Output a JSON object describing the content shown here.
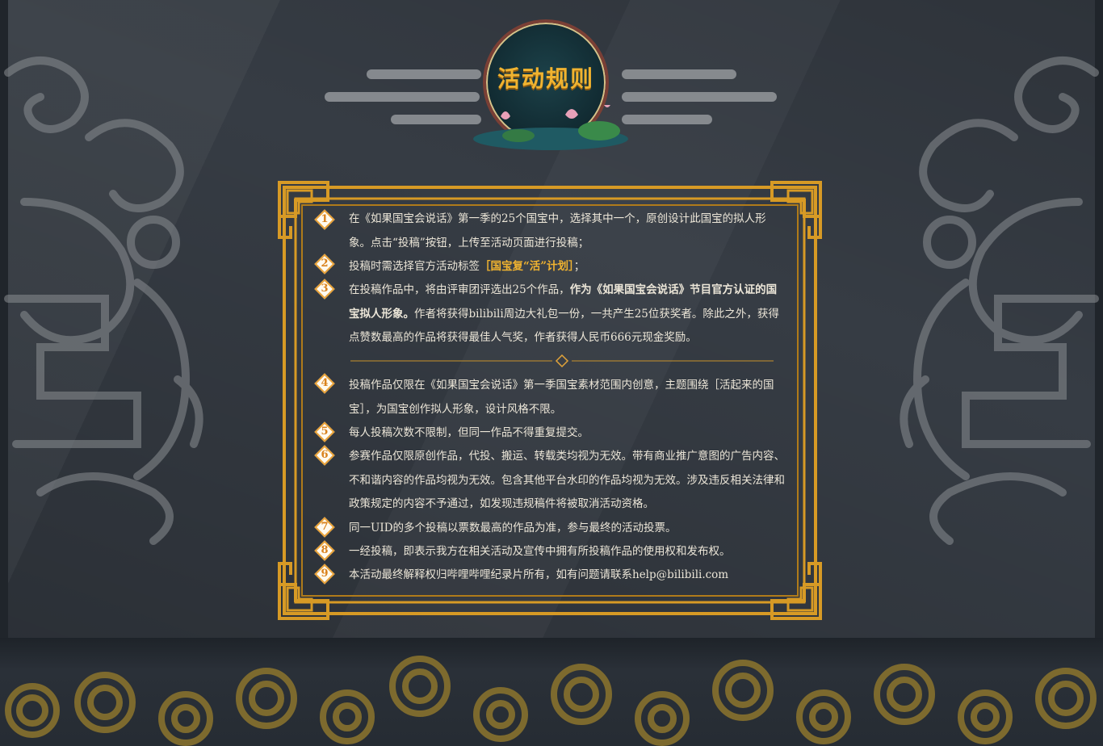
{
  "header": {
    "title": "活动规则"
  },
  "rules": [
    {
      "num": "1",
      "text": "在《如果国宝会说话》第一季的25个国宝中，选择其中一个，原创设计此国宝的拟人形象。点击“投稿”按钮，上传至活动页面进行投稿；"
    },
    {
      "num": "2",
      "text_before": "投稿时需选择官方活动标签",
      "highlight": "［国宝复“活”计划］",
      "text_after": "；"
    },
    {
      "num": "3",
      "text_before": "在投稿作品中，将由评审团评选出25个作品，",
      "bold": "作为《如果国宝会说话》节目官方认证的国宝拟人形象。",
      "text_after": "作者将获得bilibili周边大礼包一份，一共产生25位获奖者。除此之外，获得点赞数最高的作品将获得最佳人气奖，作者获得人民币666元现金奖励。"
    },
    {
      "num": "4",
      "text": "投稿作品仅限在《如果国宝会说话》第一季国宝素材范围内创意，主题围绕［活起来的国宝］，为国宝创作拟人形象，设计风格不限。"
    },
    {
      "num": "5",
      "text": "每人投稿次数不限制，但同一作品不得重复提交。"
    },
    {
      "num": "6",
      "text": "参赛作品仅限原创作品，代投、搬运、转载类均视为无效。带有商业推广意图的广告内容、不和谐内容的作品均视为无效。包含其他平台水印的作品均视为无效。涉及违反相关法律和政策规定的内容不予通过，如发现违规稿件将被取消活动资格。"
    },
    {
      "num": "7",
      "text": "同一UID的多个投稿以票数最高的作品为准，参与最终的活动投票。"
    },
    {
      "num": "8",
      "text": "一经投稿，即表示我方在相关活动及宣传中拥有所投稿作品的使用权和发布权。"
    },
    {
      "num": "9",
      "text": "本活动最终解释权归哔哩哔哩纪录片所有，如有问题请联系help@bilibili.com"
    }
  ],
  "colors": {
    "accent_gold": "#f0b330",
    "frame_gold": "#d79a25",
    "bg": "#363c44",
    "number_orange": "#e8a137"
  },
  "icons": [
    "cloud-ornament-icon",
    "lotus-icon",
    "diamond-number-icon"
  ]
}
